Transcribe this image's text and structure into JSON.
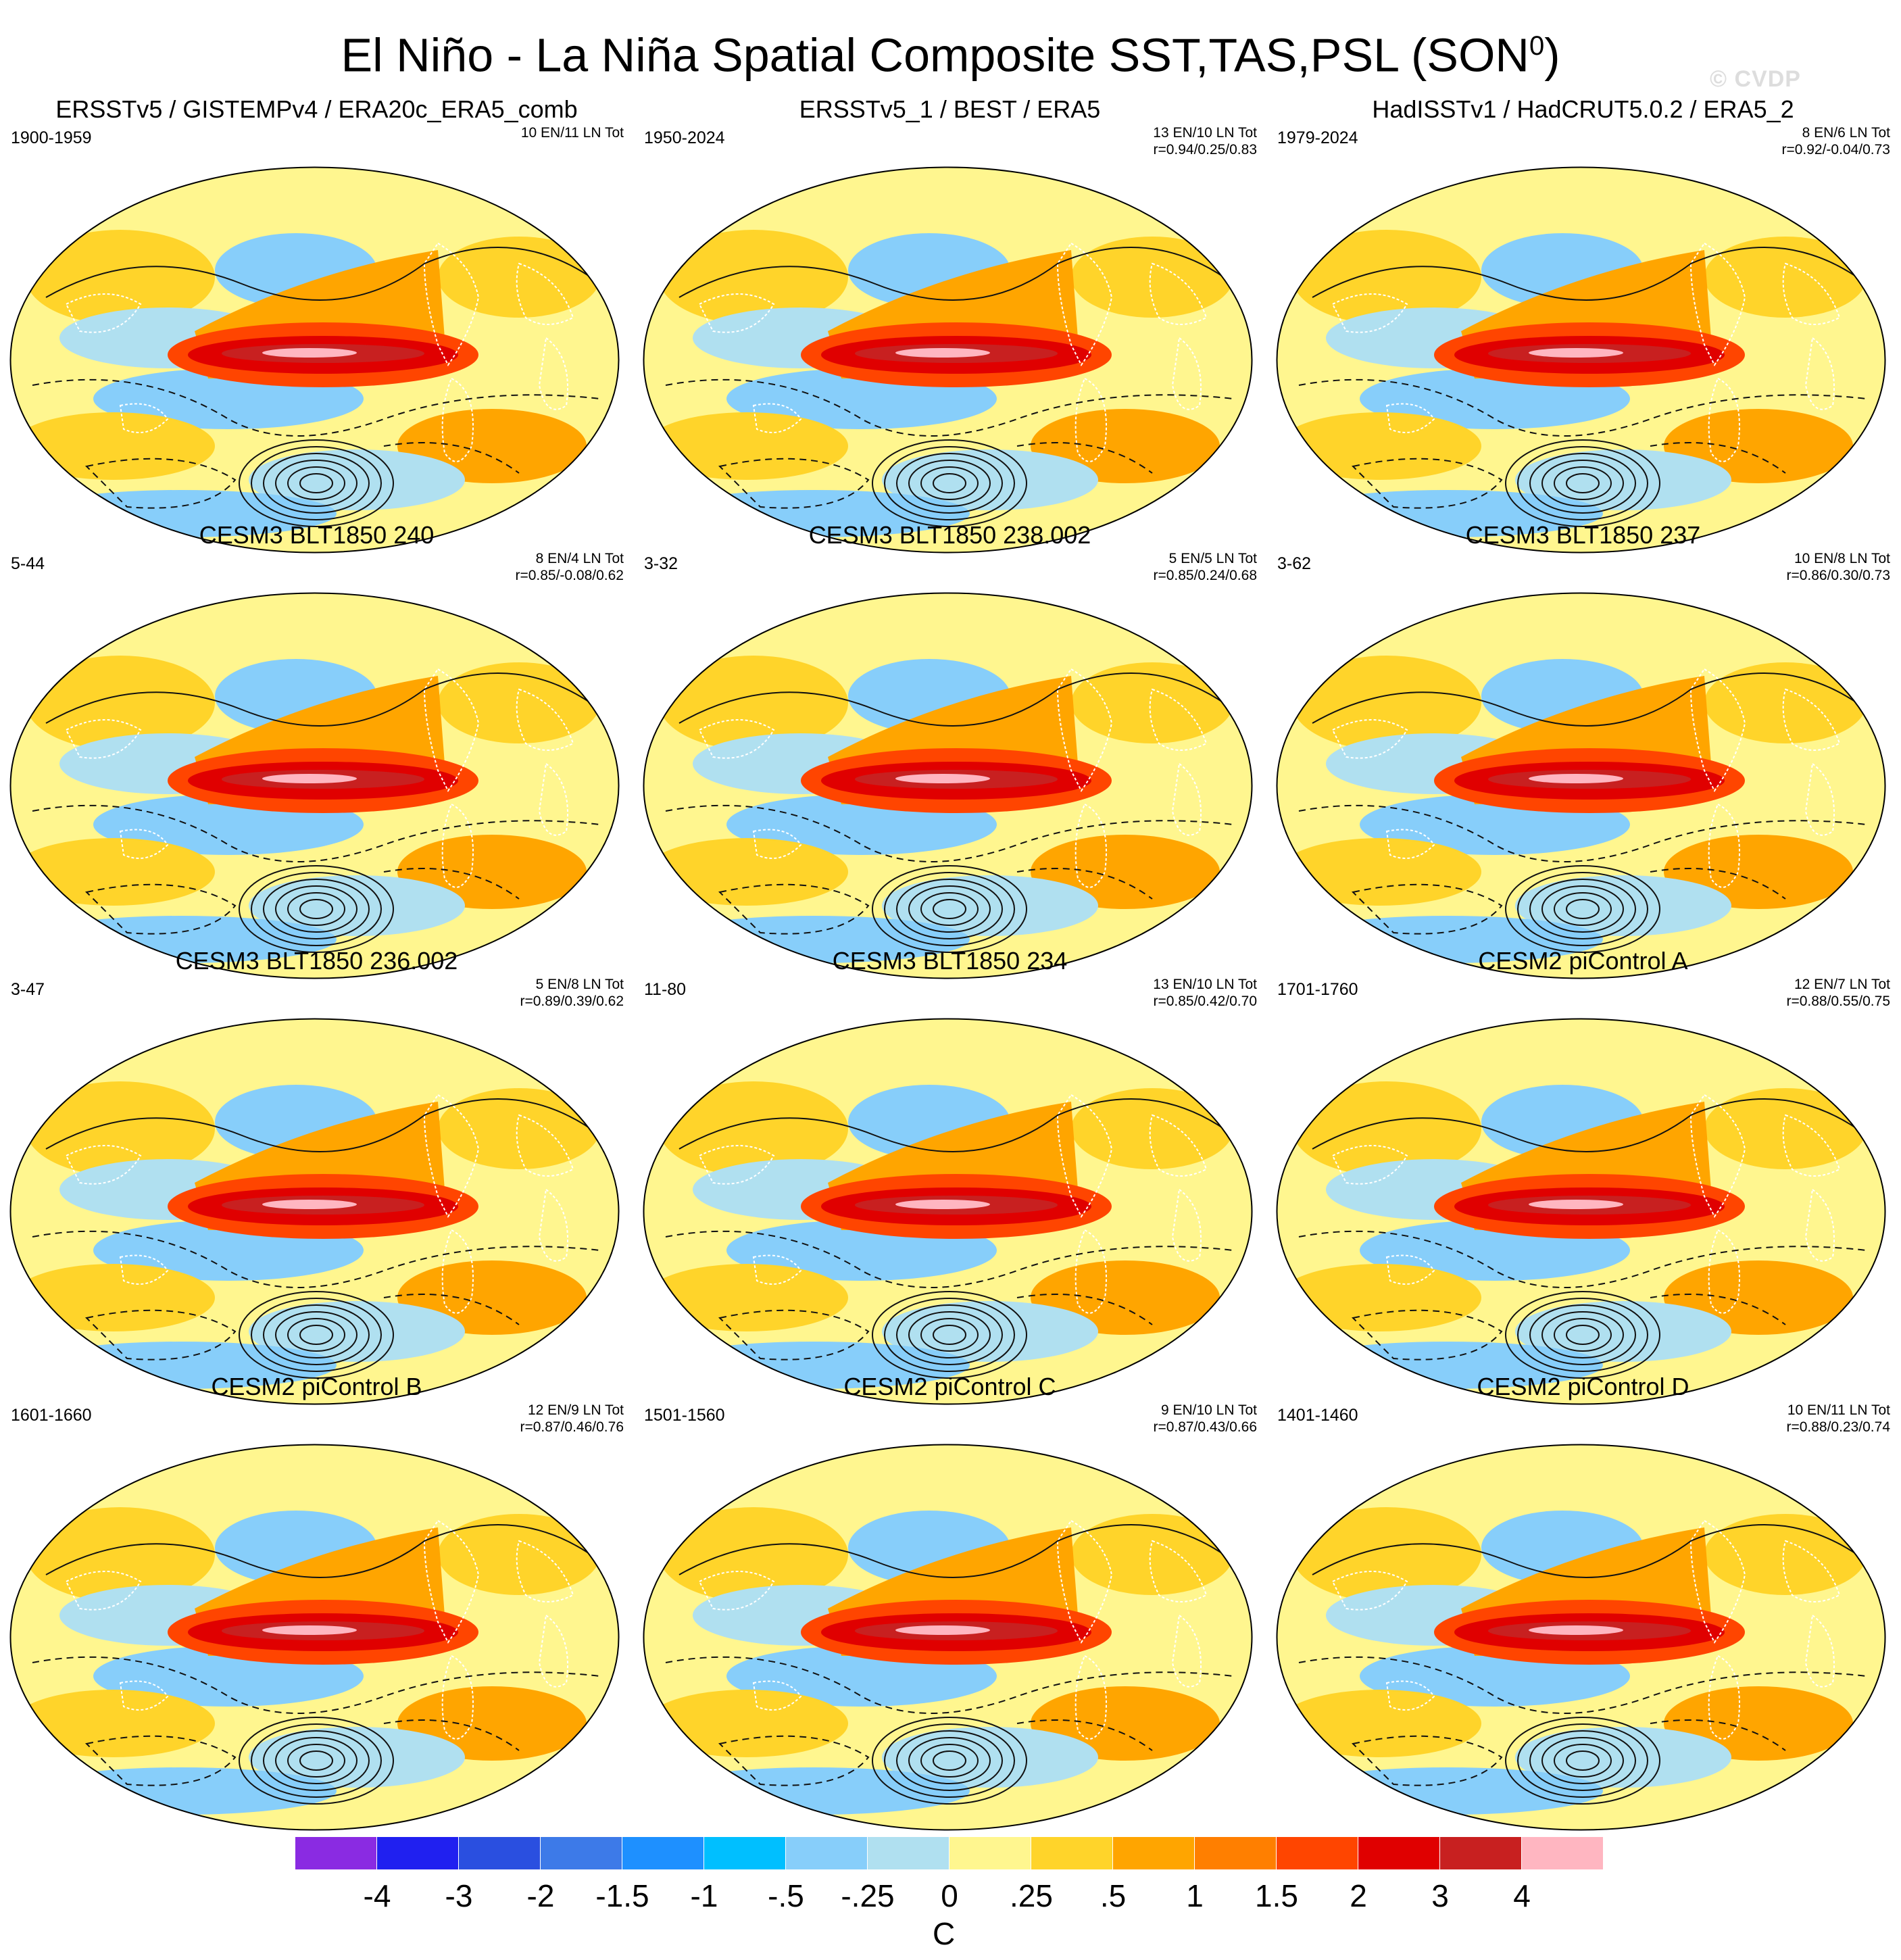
{
  "title": {
    "main": "El Niño - La Niña Spatial Composite SST,TAS,PSL (SON",
    "superscript": "0",
    "close": ")"
  },
  "watermark": "© CVDP",
  "panels": [
    {
      "title": "ERSSTv5 / GISTEMPv4 / ERA20c_ERA5_comb",
      "period": "1900-1959",
      "events": "10 EN/11 LN Tot",
      "corr": ""
    },
    {
      "title": "ERSSTv5_1 / BEST / ERA5",
      "period": "1950-2024",
      "events": "13 EN/10 LN Tot",
      "corr": "r=0.94/0.25/0.83"
    },
    {
      "title": "HadISSTv1 / HadCRUT5.0.2 / ERA5_2",
      "period": "1979-2024",
      "events": "8 EN/6 LN Tot",
      "corr": "r=0.92/-0.04/0.73"
    },
    {
      "title": "CESM3 BLT1850 240",
      "period": "5-44",
      "events": "8 EN/4 LN Tot",
      "corr": "r=0.85/-0.08/0.62"
    },
    {
      "title": "CESM3 BLT1850 238.002",
      "period": "3-32",
      "events": "5 EN/5 LN Tot",
      "corr": "r=0.85/0.24/0.68"
    },
    {
      "title": "CESM3 BLT1850 237",
      "period": "3-62",
      "events": "10 EN/8 LN Tot",
      "corr": "r=0.86/0.30/0.73"
    },
    {
      "title": "CESM3 BLT1850 236.002",
      "period": "3-47",
      "events": "5 EN/8 LN Tot",
      "corr": "r=0.89/0.39/0.62"
    },
    {
      "title": "CESM3 BLT1850 234",
      "period": "11-80",
      "events": "13 EN/10 LN Tot",
      "corr": "r=0.85/0.42/0.70"
    },
    {
      "title": "CESM2 piControl A",
      "period": "1701-1760",
      "events": "12 EN/7 LN Tot",
      "corr": "r=0.88/0.55/0.75"
    },
    {
      "title": "CESM2 piControl B",
      "period": "1601-1660",
      "events": "12 EN/9 LN Tot",
      "corr": "r=0.87/0.46/0.76"
    },
    {
      "title": "CESM2 piControl C",
      "period": "1501-1560",
      "events": "9 EN/10 LN Tot",
      "corr": "r=0.87/0.43/0.66"
    },
    {
      "title": "CESM2 piControl D",
      "period": "1401-1460",
      "events": "10 EN/11 LN Tot",
      "corr": "r=0.88/0.23/0.74"
    }
  ],
  "colorbar": {
    "colors": [
      "#8a2be2",
      "#2020f0",
      "#2a4fe0",
      "#3d7ae8",
      "#1e90ff",
      "#00bfff",
      "#87cefa",
      "#b0e0f0",
      "#fff68f",
      "#ffd42a",
      "#ffa500",
      "#ff7f00",
      "#ff4500",
      "#e00000",
      "#c82020",
      "#ffb6c1"
    ],
    "labels": [
      "-4",
      "-3",
      "-2",
      "-1.5",
      "-1",
      "-.5",
      "-.25",
      "0",
      ".25",
      ".5",
      "1",
      "1.5",
      "2",
      "3",
      "4"
    ],
    "units": "C"
  }
}
